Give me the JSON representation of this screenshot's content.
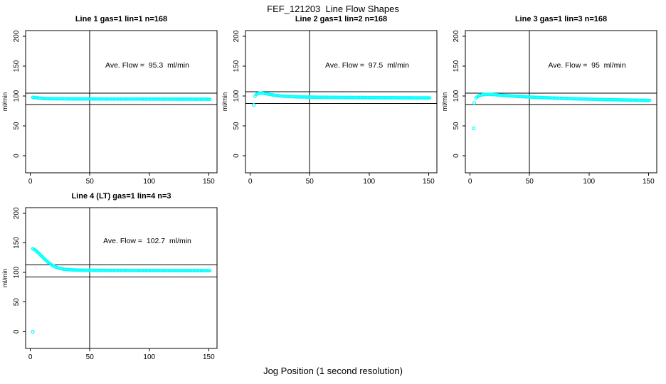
{
  "main_title": "FEF_121203  Line Flow Shapes",
  "x_axis_label": "Jog Position (1 second resolution)",
  "point_color": "#00FFFF",
  "axis_color": "#000000",
  "chart_data": [
    {
      "type": "scatter",
      "title": "Line 1 gas=1 lin=1 n=168",
      "annotation": "Ave. Flow =  95.3  ml/min",
      "ave_flow_ml_min": 95.3,
      "ylabel": "ml/min",
      "xlim": [
        -4,
        157
      ],
      "ylim": [
        -28.5,
        209.5
      ],
      "x_ticks": [
        0,
        50,
        100,
        150
      ],
      "y_ticks": [
        0,
        50,
        100,
        150,
        200
      ],
      "vline_x": 50,
      "hlines": [
        104.8,
        85.8
      ],
      "x_start": 2,
      "x_end": 151,
      "x_step": 1,
      "knots": [
        [
          2,
          97.8
        ],
        [
          4,
          97.5
        ],
        [
          6,
          96.9
        ],
        [
          9,
          96.2
        ],
        [
          13,
          95.7
        ],
        [
          20,
          95.4
        ],
        [
          35,
          95.2
        ],
        [
          60,
          95.0
        ],
        [
          100,
          94.9
        ],
        [
          151,
          94.6
        ]
      ],
      "outliers": []
    },
    {
      "type": "scatter",
      "title": "Line 2 gas=1 lin=2 n=168",
      "annotation": "Ave. Flow =  97.5  ml/min",
      "ave_flow_ml_min": 97.5,
      "ylabel": "ml/min",
      "xlim": [
        -4,
        157
      ],
      "ylim": [
        -28.5,
        209.5
      ],
      "x_ticks": [
        0,
        50,
        100,
        150
      ],
      "y_ticks": [
        0,
        50,
        100,
        150,
        200
      ],
      "vline_x": 50,
      "hlines": [
        107.3,
        87.8
      ],
      "x_start": 4,
      "x_end": 151,
      "x_step": 1,
      "knots": [
        [
          4,
          99.5
        ],
        [
          5,
          102.5
        ],
        [
          7,
          104.8
        ],
        [
          9,
          105.0
        ],
        [
          12,
          104.2
        ],
        [
          16,
          102.8
        ],
        [
          20,
          101.4
        ],
        [
          25,
          100.2
        ],
        [
          30,
          99.4
        ],
        [
          40,
          98.5
        ],
        [
          55,
          98.0
        ],
        [
          80,
          97.6
        ],
        [
          110,
          97.2
        ],
        [
          151,
          96.8
        ]
      ],
      "outliers": [
        [
          3,
          85
        ]
      ]
    },
    {
      "type": "scatter",
      "title": "Line 3 gas=1 lin=3 n=168",
      "annotation": "Ave. Flow =  95  ml/min",
      "ave_flow_ml_min": 95,
      "ylabel": "ml/min",
      "xlim": [
        -4,
        157
      ],
      "ylim": [
        -28.5,
        209.5
      ],
      "x_ticks": [
        0,
        50,
        100,
        150
      ],
      "y_ticks": [
        0,
        50,
        100,
        150,
        200
      ],
      "vline_x": 50,
      "hlines": [
        104.5,
        85.5
      ],
      "x_start": 5,
      "x_end": 151,
      "x_step": 1,
      "knots": [
        [
          5,
          96.5
        ],
        [
          7,
          100.0
        ],
        [
          10,
          102.0
        ],
        [
          14,
          102.8
        ],
        [
          18,
          102.6
        ],
        [
          25,
          101.5
        ],
        [
          35,
          100.0
        ],
        [
          45,
          98.8
        ],
        [
          55,
          97.8
        ],
        [
          70,
          96.6
        ],
        [
          90,
          95.2
        ],
        [
          110,
          94.2
        ],
        [
          130,
          93.3
        ],
        [
          151,
          92.6
        ]
      ],
      "outliers": [
        [
          3,
          46
        ],
        [
          3.5,
          88.5
        ]
      ]
    },
    {
      "type": "scatter",
      "title": "Line 4 (LT) gas=1 lin=4 n=3",
      "annotation": "Ave. Flow =  102.7  ml/min",
      "ave_flow_ml_min": 102.7,
      "ylabel": "ml/min",
      "xlim": [
        -4,
        157
      ],
      "ylim": [
        -28.5,
        209.5
      ],
      "x_ticks": [
        0,
        50,
        100,
        150
      ],
      "y_ticks": [
        0,
        50,
        100,
        150,
        200
      ],
      "vline_x": 50,
      "hlines": [
        112.9,
        92.4
      ],
      "x_start": 2,
      "x_end": 151,
      "x_step": 1,
      "knots": [
        [
          2,
          140.0
        ],
        [
          4,
          138.0
        ],
        [
          6,
          134.5
        ],
        [
          9,
          128.5
        ],
        [
          12,
          122.5
        ],
        [
          15,
          117.0
        ],
        [
          18,
          112.5
        ],
        [
          21,
          109.3
        ],
        [
          24,
          107.2
        ],
        [
          28,
          105.5
        ],
        [
          33,
          104.5
        ],
        [
          40,
          103.9
        ],
        [
          50,
          103.6
        ],
        [
          70,
          103.4
        ],
        [
          100,
          103.2
        ],
        [
          151,
          103.0
        ]
      ],
      "outliers": [
        [
          2,
          0
        ]
      ]
    }
  ]
}
